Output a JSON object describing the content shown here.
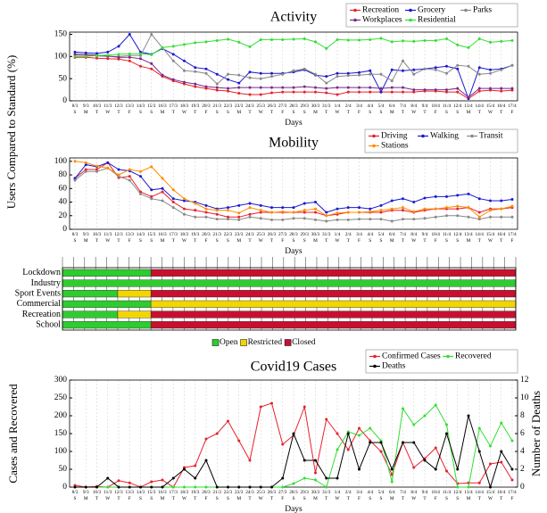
{
  "chart_data": [
    {
      "type": "line",
      "title": "Activity",
      "ylabel": "Users Compared to Standard (%)",
      "xlabel": "Days",
      "grid": true,
      "legend": "upper right",
      "categories": [
        "8/3",
        "9/3",
        "10/3",
        "11/3",
        "12/3",
        "13/3",
        "14/3",
        "15/3",
        "16/3",
        "17/3",
        "18/3",
        "19/3",
        "20/3",
        "21/3",
        "22/3",
        "23/3",
        "24/3",
        "25/3",
        "26/3",
        "27/3",
        "28/3",
        "29/3",
        "30/3",
        "31/3",
        "1/4",
        "2/4",
        "3/4",
        "4/4",
        "5/4",
        "6/4",
        "7/4",
        "8/4",
        "9/4",
        "10/4",
        "11/4",
        "12/4",
        "13/4",
        "14/4",
        "15/4",
        "16/4",
        "17/4"
      ],
      "weekdays": [
        "S",
        "M",
        "T",
        "W",
        "T",
        "F",
        "S",
        "S",
        "M",
        "T",
        "W",
        "T",
        "F",
        "S",
        "S",
        "M",
        "T",
        "W",
        "T",
        "F",
        "S",
        "S",
        "M",
        "T",
        "W",
        "T",
        "F",
        "S",
        "S",
        "M",
        "T",
        "W",
        "T",
        "F",
        "S",
        "S",
        "M",
        "T",
        "W",
        "T",
        "F"
      ],
      "ylim": [
        0,
        155
      ],
      "yticks": [
        0,
        50,
        100,
        150
      ],
      "series": [
        {
          "name": "Recreation",
          "color": "#e8202a",
          "values": [
            98,
            98,
            96,
            95,
            94,
            90,
            78,
            72,
            55,
            45,
            38,
            32,
            28,
            24,
            22,
            17,
            14,
            14,
            18,
            20,
            20,
            20,
            20,
            18,
            14,
            20,
            20,
            20,
            20,
            20,
            20,
            20,
            22,
            22,
            20,
            20,
            5,
            22,
            24,
            22,
            24
          ]
        },
        {
          "name": "Grocery",
          "color": "#1a1ad0",
          "values": [
            110,
            108,
            107,
            110,
            123,
            150,
            110,
            105,
            118,
            105,
            90,
            75,
            72,
            60,
            48,
            40,
            65,
            62,
            62,
            62,
            65,
            70,
            58,
            55,
            62,
            62,
            64,
            68,
            20,
            70,
            68,
            70,
            72,
            75,
            78,
            72,
            5,
            75,
            70,
            72,
            80
          ]
        },
        {
          "name": "Parks",
          "color": "#888888",
          "values": [
            103,
            103,
            101,
            100,
            100,
            102,
            102,
            150,
            120,
            90,
            68,
            66,
            62,
            38,
            60,
            58,
            52,
            50,
            55,
            60,
            68,
            72,
            60,
            40,
            55,
            57,
            58,
            60,
            60,
            45,
            90,
            60,
            72,
            70,
            62,
            80,
            78,
            60,
            62,
            70,
            80
          ]
        },
        {
          "name": "Workplaces",
          "color": "#7a2a8a",
          "values": [
            105,
            104,
            103,
            101,
            98,
            98,
            95,
            84,
            58,
            48,
            42,
            38,
            32,
            30,
            28,
            30,
            30,
            30,
            30,
            30,
            30,
            32,
            30,
            28,
            30,
            30,
            30,
            30,
            28,
            30,
            30,
            25,
            25,
            25,
            25,
            28,
            8,
            28,
            28,
            28,
            28
          ]
        },
        {
          "name": "Residential",
          "color": "#33e033",
          "values": [
            100,
            100,
            102,
            103,
            105,
            106,
            106,
            104,
            120,
            123,
            127,
            131,
            133,
            136,
            139,
            132,
            122,
            138,
            138,
            138,
            139,
            140,
            133,
            118,
            138,
            137,
            137,
            138,
            141,
            133,
            135,
            134,
            136,
            136,
            140,
            126,
            120,
            140,
            132,
            134,
            136
          ]
        }
      ]
    },
    {
      "type": "line",
      "title": "Mobility",
      "xlabel": "Days",
      "grid": true,
      "legend": "upper right",
      "categories": [
        "8/3",
        "9/3",
        "10/3",
        "11/3",
        "12/3",
        "13/3",
        "14/3",
        "15/3",
        "16/3",
        "17/3",
        "18/3",
        "19/3",
        "20/3",
        "21/3",
        "22/3",
        "23/3",
        "24/3",
        "25/3",
        "26/3",
        "27/3",
        "28/3",
        "29/3",
        "30/3",
        "31/3",
        "1/4",
        "2/4",
        "3/4",
        "4/4",
        "5/4",
        "6/4",
        "7/4",
        "8/4",
        "9/4",
        "10/4",
        "11/4",
        "12/4",
        "13/4",
        "14/4",
        "15/4",
        "16/4",
        "17/4"
      ],
      "weekdays": [
        "S",
        "M",
        "T",
        "W",
        "T",
        "F",
        "S",
        "S",
        "M",
        "T",
        "W",
        "T",
        "F",
        "S",
        "S",
        "M",
        "T",
        "W",
        "T",
        "F",
        "S",
        "S",
        "M",
        "T",
        "W",
        "T",
        "F",
        "S",
        "S",
        "M",
        "T",
        "W",
        "T",
        "F",
        "S",
        "S",
        "M",
        "T",
        "W",
        "T",
        "F"
      ],
      "ylim": [
        0,
        105
      ],
      "yticks": [
        0,
        20,
        40,
        60,
        80,
        100
      ],
      "series": [
        {
          "name": "Driving",
          "color": "#e8202a",
          "values": [
            75,
            88,
            88,
            98,
            76,
            78,
            55,
            48,
            55,
            40,
            30,
            28,
            25,
            22,
            18,
            18,
            22,
            25,
            25,
            25,
            25,
            25,
            25,
            20,
            22,
            25,
            25,
            25,
            25,
            28,
            28,
            25,
            28,
            30,
            30,
            30,
            32,
            25,
            30,
            30,
            32
          ]
        },
        {
          "name": "Walking",
          "color": "#1a1ad0",
          "values": [
            75,
            95,
            92,
            98,
            88,
            86,
            78,
            58,
            60,
            45,
            42,
            40,
            35,
            30,
            32,
            35,
            38,
            35,
            32,
            32,
            32,
            38,
            40,
            25,
            30,
            32,
            32,
            30,
            35,
            42,
            45,
            40,
            46,
            48,
            48,
            50,
            52,
            45,
            42,
            42,
            44
          ]
        },
        {
          "name": "Transit",
          "color": "#888888",
          "values": [
            72,
            85,
            85,
            90,
            78,
            72,
            52,
            45,
            42,
            32,
            22,
            18,
            18,
            15,
            15,
            14,
            18,
            16,
            14,
            14,
            16,
            16,
            14,
            12,
            14,
            14,
            15,
            15,
            15,
            12,
            15,
            15,
            16,
            18,
            20,
            20,
            18,
            15,
            18,
            18,
            18
          ]
        },
        {
          "name": "Stations",
          "color": "#ff8c00",
          "values": [
            100,
            98,
            93,
            90,
            80,
            88,
            85,
            92,
            75,
            58,
            45,
            38,
            30,
            28,
            28,
            24,
            32,
            28,
            25,
            26,
            25,
            28,
            30,
            20,
            24,
            25,
            25,
            26,
            28,
            30,
            32,
            26,
            30,
            30,
            32,
            34,
            32,
            18,
            28,
            30,
            34
          ]
        }
      ]
    },
    {
      "type": "timeline",
      "statuses": [
        {
          "name": "Open",
          "color": "#2ecc2e"
        },
        {
          "name": "Restricted",
          "color": "#f2d600"
        },
        {
          "name": "Closed",
          "color": "#c8102e"
        }
      ],
      "rows": [
        {
          "label": "Lockdown",
          "segments": [
            {
              "status": "Open",
              "days": 8
            },
            {
              "status": "Closed",
              "days": 33
            }
          ]
        },
        {
          "label": "Industry",
          "segments": [
            {
              "status": "Open",
              "days": 41
            }
          ]
        },
        {
          "label": "Sport Events",
          "segments": [
            {
              "status": "Open",
              "days": 5
            },
            {
              "status": "Restricted",
              "days": 3
            },
            {
              "status": "Closed",
              "days": 33
            }
          ]
        },
        {
          "label": "Commercial",
          "segments": [
            {
              "status": "Open",
              "days": 8
            },
            {
              "status": "Restricted",
              "days": 33
            }
          ]
        },
        {
          "label": "Recreation",
          "segments": [
            {
              "status": "Open",
              "days": 5
            },
            {
              "status": "Restricted",
              "days": 3
            },
            {
              "status": "Closed",
              "days": 33
            }
          ]
        },
        {
          "label": "School",
          "segments": [
            {
              "status": "Open",
              "days": 8
            },
            {
              "status": "Closed",
              "days": 33
            }
          ]
        }
      ]
    },
    {
      "type": "line",
      "title": "Covid19 Cases",
      "ylabel": "Cases and Recovered",
      "y2label": "Number of Deaths",
      "xlabel": "Days",
      "grid": true,
      "legend": "upper right",
      "categories": [
        "8/3",
        "9/3",
        "10/3",
        "11/3",
        "12/3",
        "13/3",
        "14/3",
        "15/3",
        "16/3",
        "17/3",
        "18/3",
        "19/3",
        "20/3",
        "21/3",
        "22/3",
        "23/3",
        "24/3",
        "25/3",
        "26/3",
        "27/3",
        "28/3",
        "29/3",
        "30/3",
        "31/3",
        "1/4",
        "2/4",
        "3/4",
        "4/4",
        "5/4",
        "6/4",
        "7/4",
        "8/4",
        "9/4",
        "10/4",
        "11/4",
        "12/4",
        "13/4",
        "14/4",
        "15/4",
        "16/4",
        "17/4"
      ],
      "weekdays": [
        "S",
        "M",
        "T",
        "W",
        "T",
        "F",
        "S",
        "S",
        "M",
        "T",
        "W",
        "T",
        "F",
        "S",
        "S",
        "M",
        "T",
        "W",
        "T",
        "F",
        "S",
        "S",
        "M",
        "T",
        "W",
        "T",
        "F",
        "S",
        "S",
        "M",
        "T",
        "W",
        "T",
        "F",
        "S",
        "S",
        "M",
        "T",
        "W",
        "T",
        "F"
      ],
      "ylim": [
        0,
        300
      ],
      "yticks": [
        0,
        50,
        100,
        150,
        200,
        250,
        300
      ],
      "y2lim": [
        0,
        12
      ],
      "y2ticks": [
        0,
        2,
        4,
        6,
        8,
        10,
        12
      ],
      "series": [
        {
          "name": "Confirmed Cases",
          "color": "#e8202a",
          "values": [
            5,
            0,
            2,
            0,
            18,
            12,
            0,
            15,
            20,
            0,
            55,
            60,
            135,
            150,
            185,
            130,
            75,
            225,
            235,
            120,
            145,
            225,
            40,
            190,
            150,
            105,
            165,
            130,
            100,
            35,
            125,
            55,
            80,
            110,
            45,
            10,
            12,
            12,
            65,
            70,
            20
          ]
        },
        {
          "name": "Recovered",
          "color": "#33dd33",
          "values": [
            0,
            0,
            0,
            0,
            0,
            0,
            0,
            0,
            0,
            0,
            0,
            0,
            0,
            0,
            0,
            0,
            0,
            0,
            0,
            0,
            10,
            25,
            20,
            0,
            105,
            155,
            145,
            165,
            130,
            15,
            220,
            175,
            200,
            230,
            175,
            0,
            0,
            165,
            115,
            180,
            130
          ]
        },
        {
          "name": "Deaths",
          "color": "#000000",
          "axis": "y2",
          "values": [
            0,
            0,
            0,
            1,
            0,
            0,
            0,
            0,
            0,
            1,
            2,
            1,
            3,
            0,
            0,
            0,
            0,
            0,
            0,
            1,
            6,
            3,
            3,
            1,
            1,
            6,
            2,
            5,
            5,
            2,
            5,
            5,
            3,
            2,
            6,
            2,
            8,
            4,
            0,
            4,
            2
          ]
        }
      ]
    }
  ]
}
